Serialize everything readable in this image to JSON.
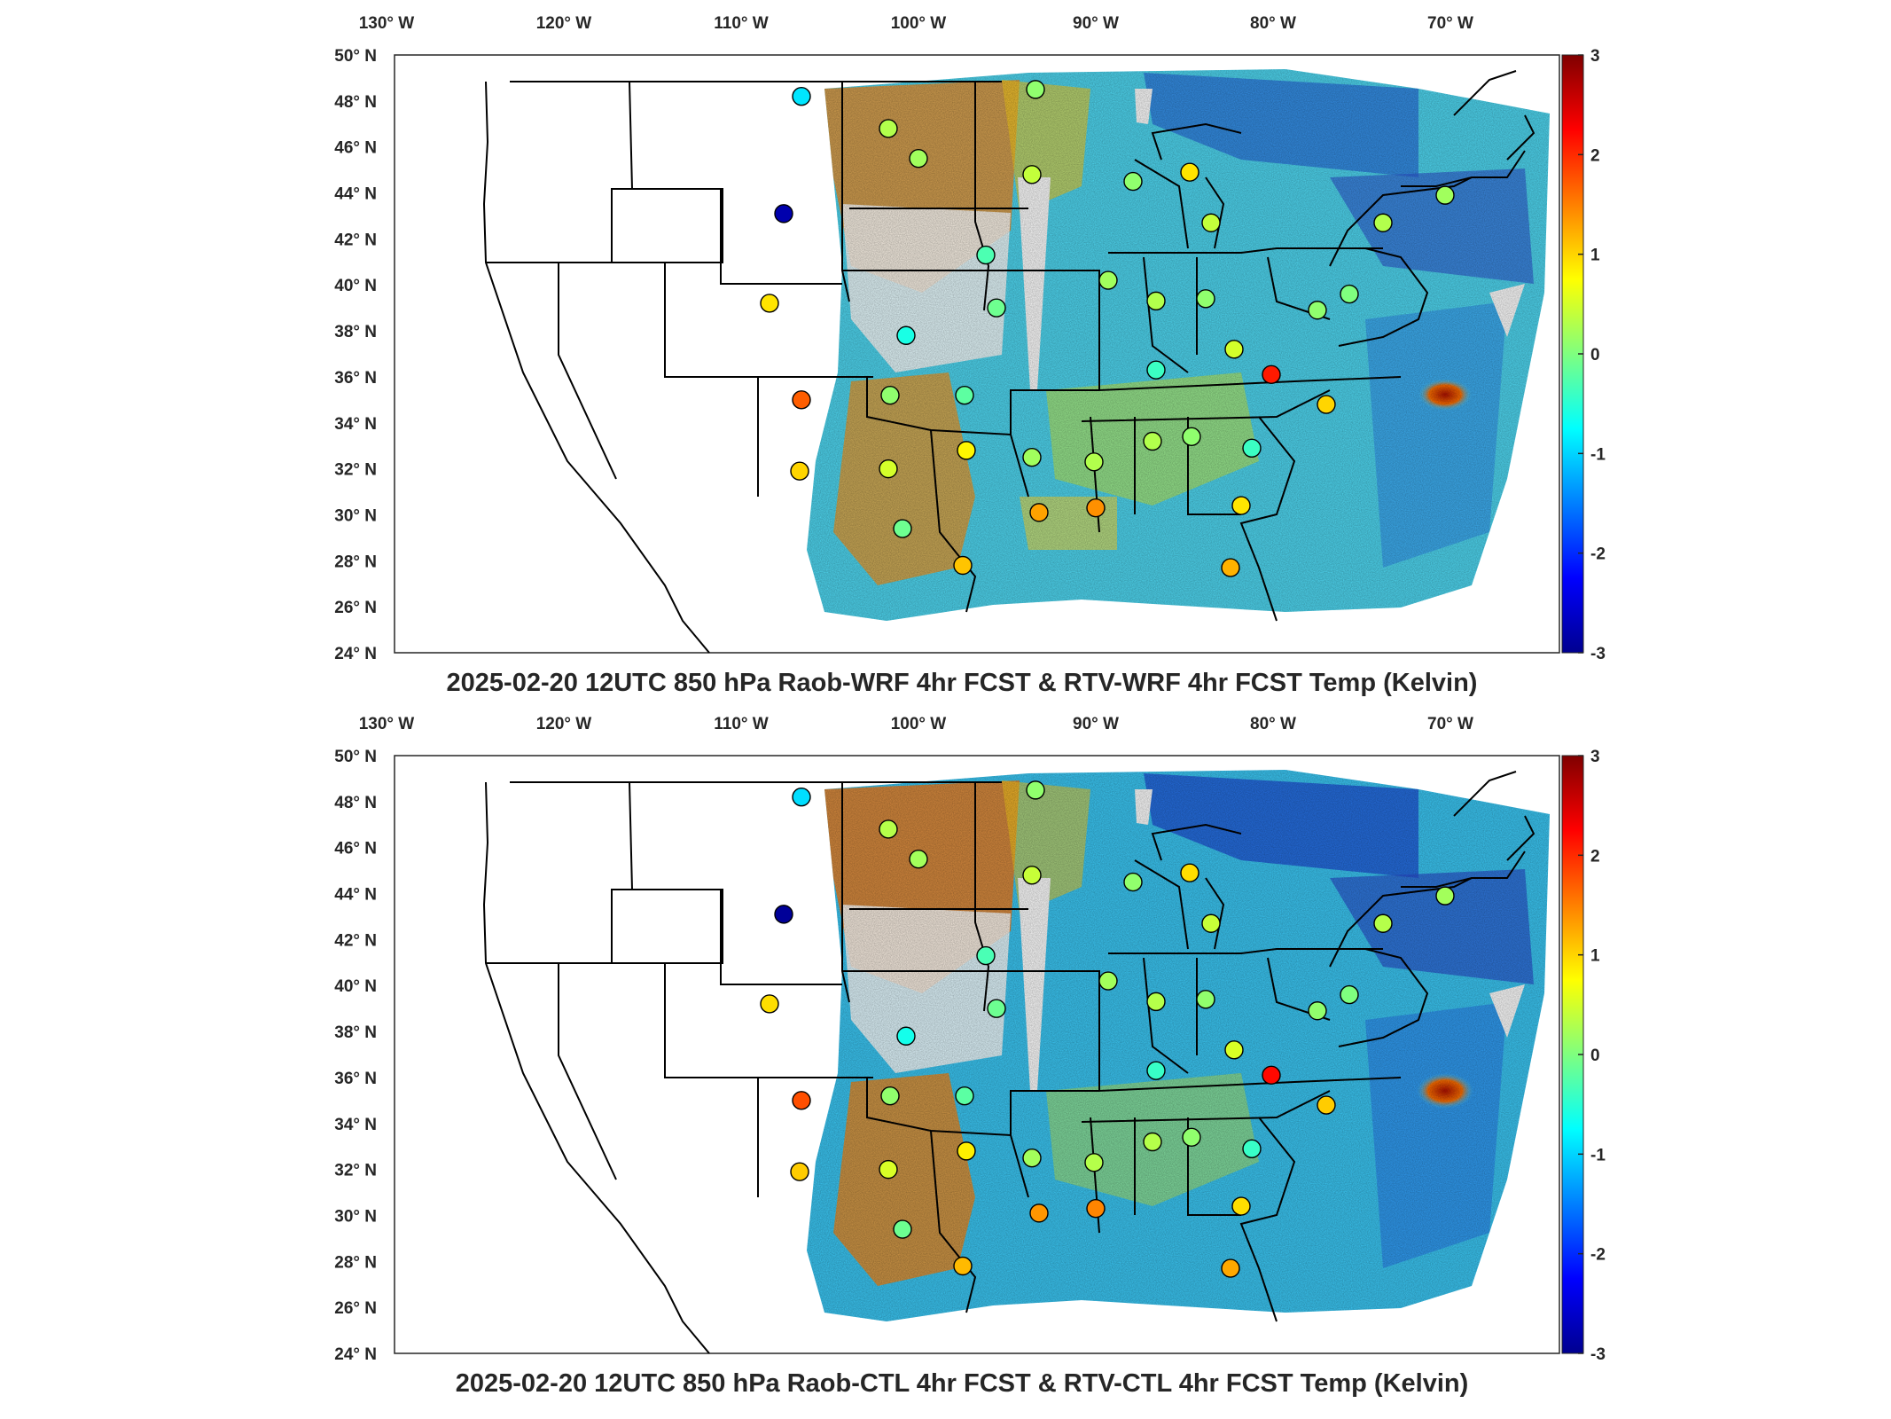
{
  "panels": [
    {
      "title": "2025-02-20 12UTC 850 hPa Raob-WRF 4hr FCST & RTV-WRF 4hr FCST Temp (Kelvin)",
      "lon_labels": [
        "130",
        "120",
        "110",
        "100",
        "90",
        "80",
        "70"
      ],
      "lon_suffix": "W",
      "lat_labels": [
        "50",
        "48",
        "46",
        "44",
        "42",
        "40",
        "38",
        "36",
        "34",
        "32",
        "30",
        "28",
        "26",
        "24"
      ],
      "lat_suffix": "N",
      "colorbar_ticks": [
        "3",
        "2",
        "1",
        "0",
        "-1",
        "-2",
        "-3"
      ]
    },
    {
      "title": "2025-02-20 12UTC 850 hPa Raob-CTL 4hr FCST & RTV-CTL 4hr FCST Temp (Kelvin)",
      "lon_labels": [
        "130",
        "120",
        "110",
        "100",
        "90",
        "80",
        "70"
      ],
      "lon_suffix": "W",
      "lat_labels": [
        "50",
        "48",
        "46",
        "44",
        "42",
        "40",
        "38",
        "36",
        "34",
        "32",
        "30",
        "28",
        "26",
        "24"
      ],
      "lat_suffix": "N",
      "colorbar_ticks": [
        "3",
        "2",
        "1",
        "0",
        "-1",
        "-2",
        "-3"
      ]
    }
  ],
  "colorbar": {
    "min": -3,
    "max": 3,
    "colormap": "jet"
  },
  "stations": [
    {
      "lon": -106.6,
      "lat": 48.2,
      "v": -0.9
    },
    {
      "lon": -107.6,
      "lat": 43.1,
      "v": -2.8
    },
    {
      "lon": -108.4,
      "lat": 39.2,
      "v": 0.9
    },
    {
      "lon": -106.6,
      "lat": 35.0,
      "v": 1.7
    },
    {
      "lon": -106.7,
      "lat": 31.9,
      "v": 1.0
    },
    {
      "lon": -101.7,
      "lat": 46.8,
      "v": 0.3
    },
    {
      "lon": -100.0,
      "lat": 45.5,
      "v": 0.2
    },
    {
      "lon": -93.6,
      "lat": 44.8,
      "v": 0.4
    },
    {
      "lon": -93.4,
      "lat": 48.5,
      "v": 0.1
    },
    {
      "lon": -96.2,
      "lat": 41.3,
      "v": -0.3
    },
    {
      "lon": -95.6,
      "lat": 39.0,
      "v": -0.1
    },
    {
      "lon": -100.7,
      "lat": 37.8,
      "v": -0.6
    },
    {
      "lon": -101.6,
      "lat": 35.2,
      "v": 0.1
    },
    {
      "lon": -97.4,
      "lat": 35.2,
      "v": -0.2
    },
    {
      "lon": -97.3,
      "lat": 32.8,
      "v": 0.8
    },
    {
      "lon": -101.7,
      "lat": 32.0,
      "v": 0.5
    },
    {
      "lon": -100.9,
      "lat": 29.4,
      "v": -0.1
    },
    {
      "lon": -97.5,
      "lat": 27.8,
      "v": 1.1
    },
    {
      "lon": -93.6,
      "lat": 32.5,
      "v": 0.2
    },
    {
      "lon": -93.2,
      "lat": 30.1,
      "v": 1.3
    },
    {
      "lon": -90.0,
      "lat": 30.3,
      "v": 1.4
    },
    {
      "lon": -90.1,
      "lat": 32.3,
      "v": 0.3
    },
    {
      "lon": -86.8,
      "lat": 33.2,
      "v": 0.3
    },
    {
      "lon": -84.6,
      "lat": 33.4,
      "v": 0.1
    },
    {
      "lon": -81.2,
      "lat": 32.9,
      "v": -0.4
    },
    {
      "lon": -81.8,
      "lat": 30.4,
      "v": 0.9
    },
    {
      "lon": -82.4,
      "lat": 27.7,
      "v": 1.2
    },
    {
      "lon": -77.0,
      "lat": 34.8,
      "v": 1.0
    },
    {
      "lon": -80.1,
      "lat": 36.1,
      "v": 2.1
    },
    {
      "lon": -82.2,
      "lat": 37.2,
      "v": 0.5
    },
    {
      "lon": -86.6,
      "lat": 36.3,
      "v": -0.4
    },
    {
      "lon": -89.3,
      "lat": 40.2,
      "v": 0.2
    },
    {
      "lon": -86.6,
      "lat": 39.3,
      "v": 0.3
    },
    {
      "lon": -83.8,
      "lat": 39.4,
      "v": 0.1
    },
    {
      "lon": -83.5,
      "lat": 42.7,
      "v": 0.4
    },
    {
      "lon": -84.7,
      "lat": 44.9,
      "v": 0.9
    },
    {
      "lon": -87.9,
      "lat": 44.5,
      "v": 0.1
    },
    {
      "lon": -73.8,
      "lat": 42.7,
      "v": 0.3
    },
    {
      "lon": -70.3,
      "lat": 43.9,
      "v": 0.2
    },
    {
      "lon": -77.5,
      "lat": 38.9,
      "v": 0.1
    },
    {
      "lon": -75.7,
      "lat": 39.6,
      "v": 0.0
    }
  ]
}
